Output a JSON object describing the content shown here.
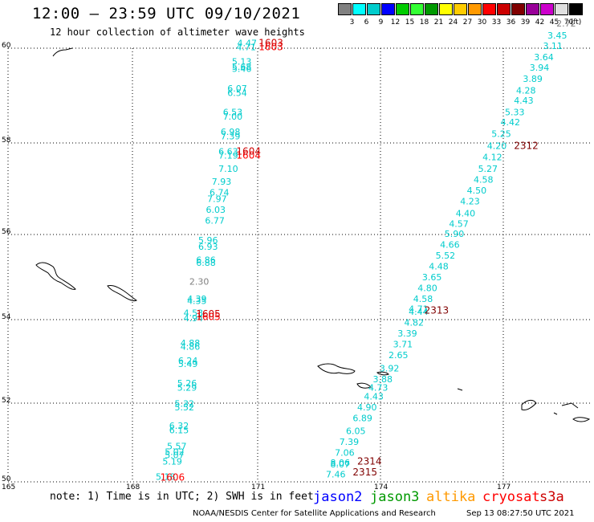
{
  "header": {
    "title": "12:00 – 23:59 UTC 09/10/2021",
    "subtitle": "12 hour collection of altimeter wave heights"
  },
  "scale": {
    "colors": [
      "#808080",
      "#00ffff",
      "#00cccc",
      "#0000ff",
      "#00cc00",
      "#33ff33",
      "#009900",
      "#ffff00",
      "#ffcc00",
      "#ff9900",
      "#ff0000",
      "#cc0000",
      "#800000",
      "#990099",
      "#cc00cc",
      "#e0e0e0",
      "#000000"
    ],
    "labels": [
      "3",
      "6",
      "9",
      "12",
      "15",
      "18",
      "21",
      "24",
      "27",
      "30",
      "33",
      "36",
      "39",
      "42",
      "45",
      "70",
      "(ft)"
    ]
  },
  "map": {
    "lat_ticks": [
      "60",
      "58",
      "56",
      "54",
      "52",
      "50"
    ],
    "lon_ticks": [
      "165",
      "168",
      "171",
      "174",
      "177"
    ],
    "track_left": {
      "color": "#00cccc",
      "points": [
        {
          "lon": 168.3,
          "lat": 50.05,
          "v": "5.18"
        },
        {
          "lon": 168.45,
          "lat": 50.4,
          "v": "5.19"
        },
        {
          "lon": 168.5,
          "lat": 50.55,
          "v": "5.07"
        },
        {
          "lon": 168.5,
          "lat": 50.62,
          "v": "5.02"
        },
        {
          "lon": 168.55,
          "lat": 50.75,
          "v": "5.57"
        },
        {
          "lon": 168.6,
          "lat": 51.12,
          "v": "6.15"
        },
        {
          "lon": 168.6,
          "lat": 51.22,
          "v": "6.32"
        },
        {
          "lon": 168.72,
          "lat": 51.65,
          "v": "5.52"
        },
        {
          "lon": 168.72,
          "lat": 51.73,
          "v": "5.32"
        },
        {
          "lon": 168.78,
          "lat": 52.1,
          "v": "5.29"
        },
        {
          "lon": 168.78,
          "lat": 52.2,
          "v": "5.26"
        },
        {
          "lon": 168.8,
          "lat": 52.65,
          "v": "5.49"
        },
        {
          "lon": 168.8,
          "lat": 52.72,
          "v": "6.24"
        },
        {
          "lon": 168.85,
          "lat": 53.05,
          "v": "4.86"
        },
        {
          "lon": 168.85,
          "lat": 53.13,
          "v": "4.88"
        },
        {
          "lon": 168.92,
          "lat": 53.7,
          "v": "4.94"
        },
        {
          "lon": 168.92,
          "lat": 53.82,
          "v": "4.53"
        },
        {
          "lon": 169.0,
          "lat": 54.1,
          "v": "4.35"
        },
        {
          "lon": 169.0,
          "lat": 54.15,
          "v": "4.39"
        },
        {
          "lon": 169.05,
          "lat": 54.55,
          "v": "2.30",
          "c": "#808080"
        },
        {
          "lon": 169.2,
          "lat": 54.98,
          "v": "6.88"
        },
        {
          "lon": 169.2,
          "lat": 55.05,
          "v": "6.86"
        },
        {
          "lon": 169.25,
          "lat": 55.35,
          "v": "6.93"
        },
        {
          "lon": 169.25,
          "lat": 55.5,
          "v": "5.96"
        },
        {
          "lon": 169.4,
          "lat": 55.95,
          "v": "6.77"
        },
        {
          "lon": 169.42,
          "lat": 56.2,
          "v": "6.03"
        },
        {
          "lon": 169.45,
          "lat": 56.45,
          "v": "7.97"
        },
        {
          "lon": 169.5,
          "lat": 56.6,
          "v": "6.74"
        },
        {
          "lon": 169.55,
          "lat": 56.85,
          "v": "7.93"
        },
        {
          "lon": 169.7,
          "lat": 57.15,
          "v": "7.10"
        },
        {
          "lon": 169.7,
          "lat": 57.45,
          "v": "7.19"
        },
        {
          "lon": 169.7,
          "lat": 57.55,
          "v": "6.63"
        },
        {
          "lon": 169.75,
          "lat": 57.9,
          "v": "7.39"
        },
        {
          "lon": 169.75,
          "lat": 58.0,
          "v": "6.98"
        },
        {
          "lon": 169.8,
          "lat": 58.35,
          "v": "7.00"
        },
        {
          "lon": 169.8,
          "lat": 58.45,
          "v": "6.53"
        },
        {
          "lon": 169.9,
          "lat": 58.9,
          "v": "6.54"
        },
        {
          "lon": 169.9,
          "lat": 59.0,
          "v": "6.07"
        },
        {
          "lon": 170.0,
          "lat": 59.45,
          "v": "5.46"
        },
        {
          "lon": 170.0,
          "lat": 59.5,
          "v": "5.68"
        },
        {
          "lon": 170.0,
          "lat": 59.62,
          "v": "5.13"
        },
        {
          "lon": 170.1,
          "lat": 59.95,
          "v": "4.71"
        },
        {
          "lon": 170.12,
          "lat": 60.05,
          "v": "4.47"
        }
      ],
      "times": [
        {
          "lon": 168.4,
          "lat": 50.03,
          "t": "1606",
          "c": "#ff0000"
        },
        {
          "lon": 169.2,
          "lat": 53.73,
          "t": "1605",
          "c": "#ff0000"
        },
        {
          "lon": 169.2,
          "lat": 53.8,
          "t": "1605",
          "c": "#cc0000"
        },
        {
          "lon": 170.1,
          "lat": 57.45,
          "t": "1604",
          "c": "#ff0000"
        },
        {
          "lon": 170.1,
          "lat": 57.55,
          "t": "1604",
          "c": "#cc0000"
        },
        {
          "lon": 170.6,
          "lat": 59.95,
          "t": "1603",
          "c": "#ff0000"
        },
        {
          "lon": 170.6,
          "lat": 60.05,
          "t": "1603",
          "c": "#cc0000"
        }
      ]
    },
    "track_right": {
      "color": "#00cccc",
      "points": [
        {
          "lon": 172.1,
          "lat": 50.1,
          "v": "7.46"
        },
        {
          "lon": 172.2,
          "lat": 50.33,
          "v": "8.07"
        },
        {
          "lon": 172.2,
          "lat": 50.37,
          "v": "8.06"
        },
        {
          "lon": 172.3,
          "lat": 50.6,
          "v": "7.06"
        },
        {
          "lon": 172.4,
          "lat": 50.85,
          "v": "7.39"
        },
        {
          "lon": 172.55,
          "lat": 51.1,
          "v": "6.05"
        },
        {
          "lon": 172.7,
          "lat": 51.4,
          "v": "6.89"
        },
        {
          "lon": 172.8,
          "lat": 51.65,
          "v": "4.90"
        },
        {
          "lon": 172.95,
          "lat": 51.9,
          "v": "4.43"
        },
        {
          "lon": 173.05,
          "lat": 52.1,
          "v": "4.73"
        },
        {
          "lon": 173.15,
          "lat": 52.3,
          "v": "3.88"
        },
        {
          "lon": 173.3,
          "lat": 52.55,
          "v": "3.92"
        },
        {
          "lon": 173.5,
          "lat": 52.85,
          "v": "2.65"
        },
        {
          "lon": 173.6,
          "lat": 53.1,
          "v": "3.71"
        },
        {
          "lon": 173.7,
          "lat": 53.35,
          "v": "3.39"
        },
        {
          "lon": 173.85,
          "lat": 53.6,
          "v": "4.82"
        },
        {
          "lon": 173.95,
          "lat": 53.85,
          "v": "4.44"
        },
        {
          "lon": 173.95,
          "lat": 53.92,
          "v": "4.71"
        },
        {
          "lon": 174.05,
          "lat": 54.15,
          "v": "4.58"
        },
        {
          "lon": 174.15,
          "lat": 54.4,
          "v": "4.80"
        },
        {
          "lon": 174.25,
          "lat": 54.65,
          "v": "3.65"
        },
        {
          "lon": 174.4,
          "lat": 54.9,
          "v": "4.48"
        },
        {
          "lon": 174.55,
          "lat": 55.15,
          "v": "5.52"
        },
        {
          "lon": 174.65,
          "lat": 55.4,
          "v": "4.66"
        },
        {
          "lon": 174.75,
          "lat": 55.65,
          "v": "5.90"
        },
        {
          "lon": 174.85,
          "lat": 55.88,
          "v": "4.57"
        },
        {
          "lon": 175.0,
          "lat": 56.12,
          "v": "4.40"
        },
        {
          "lon": 175.1,
          "lat": 56.4,
          "v": "4.23"
        },
        {
          "lon": 175.25,
          "lat": 56.65,
          "v": "4.50"
        },
        {
          "lon": 175.4,
          "lat": 56.9,
          "v": "4.58"
        },
        {
          "lon": 175.5,
          "lat": 57.15,
          "v": "5.27"
        },
        {
          "lon": 175.6,
          "lat": 57.42,
          "v": "4.12"
        },
        {
          "lon": 175.7,
          "lat": 57.68,
          "v": "4.20"
        },
        {
          "lon": 175.8,
          "lat": 57.95,
          "v": "5.25"
        },
        {
          "lon": 176.0,
          "lat": 58.22,
          "v": "4.42"
        },
        {
          "lon": 176.1,
          "lat": 58.45,
          "v": "5.33"
        },
        {
          "lon": 176.3,
          "lat": 58.72,
          "v": "4.43"
        },
        {
          "lon": 176.35,
          "lat": 58.95,
          "v": "4.28"
        },
        {
          "lon": 176.5,
          "lat": 59.22,
          "v": "3.89"
        },
        {
          "lon": 176.65,
          "lat": 59.48,
          "v": "3.94"
        },
        {
          "lon": 176.75,
          "lat": 59.72,
          "v": "3.64"
        },
        {
          "lon": 176.95,
          "lat": 59.98,
          "v": "3.11"
        },
        {
          "lon": 177.05,
          "lat": 60.22,
          "v": "3.45"
        },
        {
          "lon": 177.25,
          "lat": 60.5,
          "v": "2.72",
          "c": "#808080"
        }
      ],
      "times": [
        {
          "lon": 172.7,
          "lat": 50.15,
          "t": "2315",
          "c": "#800000"
        },
        {
          "lon": 172.8,
          "lat": 50.4,
          "t": "2314",
          "c": "#800000"
        },
        {
          "lon": 174.3,
          "lat": 53.88,
          "t": "2313",
          "c": "#800000"
        },
        {
          "lon": 176.3,
          "lat": 57.68,
          "t": "2312",
          "c": "#800000"
        }
      ]
    }
  },
  "bottom": {
    "note": "note: 1) Time is in UTC; 2) SWH is in feet",
    "satellites": [
      {
        "name": "jason2",
        "color": "#0000ff"
      },
      {
        "name": "jason3",
        "color": "#009900"
      },
      {
        "name": "altika",
        "color": "#ff9900"
      },
      {
        "name": "cryosat",
        "color": "#ff0000"
      },
      {
        "name": "s3a",
        "color": "#cc0000"
      }
    ],
    "credit": "NOAA/NESDIS Center for Satellite Applications and Research",
    "timestamp": "Sep 13 08:27:50 UTC 2021"
  }
}
